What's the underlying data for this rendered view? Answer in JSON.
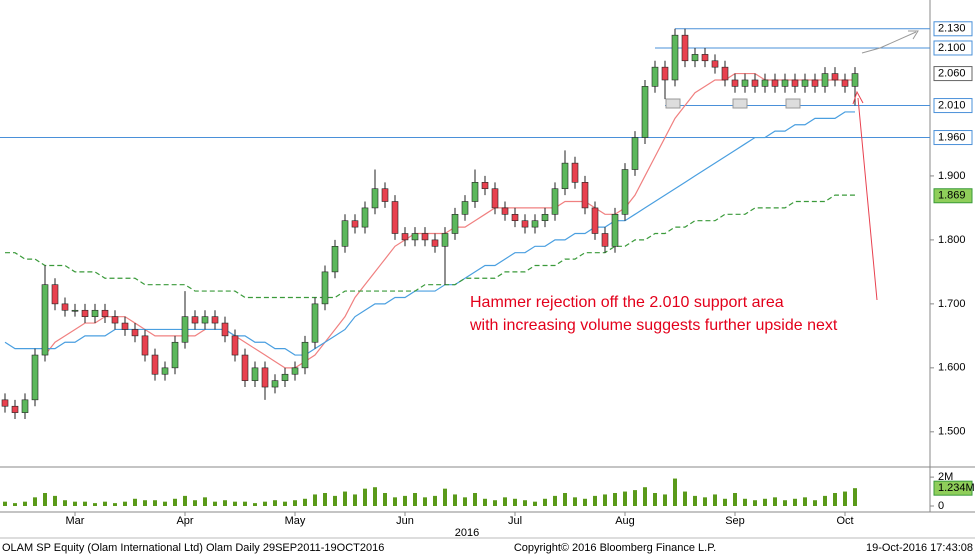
{
  "chart_data": {
    "type": "candlestick",
    "categories": [
      null,
      null,
      null,
      null,
      null,
      null,
      null,
      "Mar",
      null,
      null,
      null,
      null,
      null,
      null,
      null,
      null,
      null,
      null,
      "Apr",
      null,
      null,
      null,
      null,
      null,
      null,
      null,
      null,
      null,
      null,
      "May",
      null,
      null,
      null,
      null,
      null,
      null,
      null,
      null,
      null,
      null,
      "Jun",
      null,
      null,
      null,
      null,
      null,
      null,
      null,
      null,
      null,
      null,
      "Jul",
      null,
      null,
      null,
      null,
      null,
      null,
      null,
      null,
      null,
      null,
      "Aug",
      null,
      null,
      null,
      null,
      null,
      null,
      null,
      null,
      null,
      null,
      "Sep",
      null,
      null,
      null,
      null,
      null,
      null,
      null,
      null,
      null,
      null,
      "Oct",
      null
    ],
    "year_label": "2016",
    "open": [
      1.55,
      1.54,
      1.53,
      1.55,
      1.62,
      1.73,
      1.7,
      1.69,
      1.69,
      1.68,
      1.69,
      1.68,
      1.67,
      1.66,
      1.65,
      1.62,
      1.59,
      1.6,
      1.64,
      1.68,
      1.67,
      1.68,
      1.67,
      1.65,
      1.62,
      1.58,
      1.6,
      1.57,
      1.58,
      1.59,
      1.6,
      1.64,
      1.7,
      1.75,
      1.79,
      1.83,
      1.82,
      1.85,
      1.88,
      1.86,
      1.81,
      1.8,
      1.81,
      1.8,
      1.79,
      1.81,
      1.84,
      1.86,
      1.89,
      1.88,
      1.85,
      1.84,
      1.83,
      1.82,
      1.83,
      1.84,
      1.88,
      1.92,
      1.89,
      1.85,
      1.81,
      1.79,
      1.84,
      1.91,
      1.96,
      2.04,
      2.07,
      2.05,
      2.12,
      2.08,
      2.09,
      2.08,
      2.07,
      2.05,
      2.04,
      2.05,
      2.04,
      2.05,
      2.04,
      2.05,
      2.04,
      2.05,
      2.04,
      2.06,
      2.05,
      2.04
    ],
    "high": [
      1.56,
      1.55,
      1.56,
      1.63,
      1.76,
      1.74,
      1.71,
      1.7,
      1.7,
      1.7,
      1.7,
      1.69,
      1.68,
      1.67,
      1.66,
      1.63,
      1.61,
      1.65,
      1.72,
      1.69,
      1.69,
      1.69,
      1.68,
      1.66,
      1.63,
      1.61,
      1.61,
      1.59,
      1.6,
      1.61,
      1.65,
      1.71,
      1.76,
      1.8,
      1.84,
      1.84,
      1.86,
      1.91,
      1.89,
      1.87,
      1.82,
      1.82,
      1.82,
      1.81,
      1.82,
      1.85,
      1.87,
      1.91,
      1.9,
      1.89,
      1.86,
      1.85,
      1.84,
      1.84,
      1.85,
      1.89,
      1.94,
      1.93,
      1.9,
      1.86,
      1.82,
      1.85,
      1.92,
      1.97,
      2.05,
      2.08,
      2.08,
      2.13,
      2.13,
      2.1,
      2.1,
      2.09,
      2.08,
      2.06,
      2.06,
      2.06,
      2.06,
      2.06,
      2.06,
      2.06,
      2.06,
      2.06,
      2.07,
      2.07,
      2.06,
      2.07
    ],
    "low": [
      1.53,
      1.52,
      1.52,
      1.54,
      1.61,
      1.69,
      1.68,
      1.68,
      1.67,
      1.67,
      1.67,
      1.66,
      1.65,
      1.64,
      1.61,
      1.58,
      1.58,
      1.59,
      1.63,
      1.66,
      1.66,
      1.66,
      1.64,
      1.61,
      1.57,
      1.57,
      1.55,
      1.56,
      1.57,
      1.58,
      1.59,
      1.63,
      1.69,
      1.74,
      1.78,
      1.81,
      1.81,
      1.84,
      1.85,
      1.8,
      1.79,
      1.79,
      1.79,
      1.78,
      1.73,
      1.8,
      1.83,
      1.85,
      1.87,
      1.84,
      1.83,
      1.82,
      1.81,
      1.81,
      1.82,
      1.83,
      1.87,
      1.88,
      1.84,
      1.8,
      1.78,
      1.78,
      1.83,
      1.9,
      1.95,
      2.03,
      2.02,
      2.04,
      2.07,
      2.07,
      2.07,
      2.06,
      2.04,
      2.03,
      2.03,
      2.03,
      2.03,
      2.03,
      2.03,
      2.03,
      2.03,
      2.03,
      2.03,
      2.04,
      2.03,
      2.01
    ],
    "close": [
      1.54,
      1.53,
      1.55,
      1.62,
      1.73,
      1.7,
      1.69,
      1.69,
      1.68,
      1.69,
      1.68,
      1.67,
      1.66,
      1.65,
      1.62,
      1.59,
      1.6,
      1.64,
      1.68,
      1.67,
      1.68,
      1.67,
      1.65,
      1.62,
      1.58,
      1.6,
      1.57,
      1.58,
      1.59,
      1.6,
      1.64,
      1.7,
      1.75,
      1.79,
      1.83,
      1.82,
      1.85,
      1.88,
      1.86,
      1.81,
      1.8,
      1.81,
      1.8,
      1.79,
      1.81,
      1.84,
      1.86,
      1.89,
      1.88,
      1.85,
      1.84,
      1.83,
      1.82,
      1.83,
      1.84,
      1.88,
      1.92,
      1.89,
      1.85,
      1.81,
      1.79,
      1.84,
      1.91,
      1.96,
      2.04,
      2.07,
      2.05,
      2.12,
      2.08,
      2.09,
      2.08,
      2.07,
      2.05,
      2.04,
      2.05,
      2.04,
      2.05,
      2.04,
      2.05,
      2.04,
      2.05,
      2.04,
      2.06,
      2.05,
      2.04,
      2.06
    ],
    "up_color": "#5cb85c",
    "down_color": "#e8414f",
    "moving_averages": [
      {
        "color": "#f08080",
        "dash": false,
        "values": [
          null,
          null,
          null,
          null,
          1.62,
          1.64,
          1.65,
          1.66,
          1.67,
          1.67,
          1.68,
          1.68,
          1.68,
          1.67,
          1.66,
          1.65,
          1.65,
          1.65,
          1.65,
          1.65,
          1.66,
          1.66,
          1.66,
          1.65,
          1.64,
          1.63,
          1.62,
          1.61,
          1.6,
          1.6,
          1.61,
          1.62,
          1.64,
          1.66,
          1.68,
          1.71,
          1.73,
          1.75,
          1.77,
          1.79,
          1.8,
          1.81,
          1.81,
          1.81,
          1.81,
          1.82,
          1.82,
          1.83,
          1.84,
          1.85,
          1.85,
          1.85,
          1.85,
          1.85,
          1.85,
          1.85,
          1.86,
          1.86,
          1.86,
          1.85,
          1.84,
          1.84,
          1.85,
          1.87,
          1.9,
          1.93,
          1.96,
          1.99,
          2.01,
          2.03,
          2.04,
          2.05,
          2.05,
          2.06,
          2.06,
          2.06,
          2.05,
          2.05,
          2.05,
          2.05,
          2.05,
          2.05,
          2.05,
          2.05,
          2.05,
          2.05
        ]
      },
      {
        "color": "#4a9fe0",
        "dash": false,
        "values": [
          1.64,
          1.63,
          1.63,
          1.63,
          1.63,
          1.63,
          1.64,
          1.64,
          1.65,
          1.65,
          1.65,
          1.66,
          1.66,
          1.66,
          1.66,
          1.66,
          1.66,
          1.66,
          1.66,
          1.66,
          1.66,
          1.66,
          1.66,
          1.65,
          1.65,
          1.64,
          1.64,
          1.63,
          1.63,
          1.62,
          1.62,
          1.63,
          1.64,
          1.65,
          1.66,
          1.68,
          1.69,
          1.7,
          1.7,
          1.71,
          1.71,
          1.72,
          1.72,
          1.72,
          1.73,
          1.73,
          1.74,
          1.75,
          1.76,
          1.76,
          1.77,
          1.78,
          1.78,
          1.79,
          1.79,
          1.8,
          1.8,
          1.81,
          1.81,
          1.82,
          1.82,
          1.83,
          1.83,
          1.84,
          1.85,
          1.86,
          1.87,
          1.88,
          1.89,
          1.9,
          1.91,
          1.92,
          1.93,
          1.94,
          1.95,
          1.96,
          1.96,
          1.97,
          1.97,
          1.98,
          1.98,
          1.99,
          1.99,
          1.99,
          2.0,
          2.0
        ]
      },
      {
        "color": "#3a9a3a",
        "dash": true,
        "values": [
          1.78,
          1.78,
          1.77,
          1.77,
          1.76,
          1.76,
          1.76,
          1.75,
          1.75,
          1.75,
          1.74,
          1.74,
          1.74,
          1.74,
          1.73,
          1.73,
          1.73,
          1.73,
          1.73,
          1.72,
          1.72,
          1.72,
          1.72,
          1.72,
          1.71,
          1.71,
          1.71,
          1.71,
          1.71,
          1.71,
          1.71,
          1.71,
          1.71,
          1.71,
          1.72,
          1.72,
          1.72,
          1.72,
          1.72,
          1.72,
          1.72,
          1.72,
          1.73,
          1.73,
          1.73,
          1.73,
          1.74,
          1.74,
          1.74,
          1.74,
          1.75,
          1.75,
          1.75,
          1.76,
          1.76,
          1.76,
          1.77,
          1.77,
          1.78,
          1.78,
          1.78,
          1.79,
          1.79,
          1.8,
          1.8,
          1.81,
          1.81,
          1.82,
          1.82,
          1.83,
          1.83,
          1.83,
          1.84,
          1.84,
          1.84,
          1.85,
          1.85,
          1.85,
          1.85,
          1.86,
          1.86,
          1.86,
          1.86,
          1.87,
          1.87,
          1.87
        ]
      }
    ],
    "ylim": [
      1.445,
      2.175
    ],
    "yticks": [
      {
        "value": 1.5,
        "label": "1.500"
      },
      {
        "value": 1.6,
        "label": "1.600"
      },
      {
        "value": 1.7,
        "label": "1.700"
      },
      {
        "value": 1.8,
        "label": "1.800"
      },
      {
        "value": 1.9,
        "label": "1.900"
      }
    ],
    "levels": [
      {
        "value": 2.13,
        "label": "2.130"
      },
      {
        "value": 2.1,
        "label": "2.100"
      },
      {
        "value": 2.01,
        "label": "2.010"
      },
      {
        "value": 1.96,
        "label": "1.960"
      }
    ],
    "last_price": {
      "value": 2.06,
      "label": "2.060"
    },
    "ma_tag": {
      "value": 1.869,
      "label": "1.869"
    },
    "annotation": [
      "Hammer rejection off the 2.010 support area",
      "with increasing volume suggests further upside next"
    ],
    "volume": {
      "color": "#5a9a1a",
      "values": [
        0.3,
        0.2,
        0.3,
        0.6,
        0.9,
        0.7,
        0.4,
        0.3,
        0.3,
        0.2,
        0.3,
        0.2,
        0.3,
        0.5,
        0.4,
        0.4,
        0.3,
        0.5,
        0.7,
        0.4,
        0.6,
        0.3,
        0.4,
        0.3,
        0.3,
        0.2,
        0.3,
        0.4,
        0.3,
        0.4,
        0.5,
        0.8,
        0.9,
        0.7,
        1.0,
        0.8,
        1.2,
        1.3,
        0.9,
        0.6,
        0.7,
        0.9,
        0.6,
        0.7,
        1.2,
        0.8,
        0.6,
        0.9,
        0.5,
        0.4,
        0.6,
        0.5,
        0.4,
        0.3,
        0.5,
        0.7,
        0.9,
        0.6,
        0.5,
        0.7,
        0.8,
        0.9,
        1.0,
        1.1,
        1.3,
        0.9,
        0.8,
        1.9,
        1.0,
        0.7,
        0.6,
        0.8,
        0.5,
        0.9,
        0.5,
        0.4,
        0.5,
        0.6,
        0.4,
        0.5,
        0.6,
        0.4,
        0.7,
        0.9,
        1.0,
        1.234
      ],
      "ylim": [
        0,
        2.7
      ],
      "yticks": [
        0,
        {
          "value": 2,
          "label": "2M"
        }
      ],
      "last": {
        "value": 1.234,
        "label": "1.234M"
      }
    },
    "footer": {
      "left": "OLAM SP Equity (Olam International Ltd) Olam  Daily 29SEP2011-19OCT2016",
      "center": "Copyright© 2016 Bloomberg Finance L.P.",
      "right": "19-Oct-2016 17:43:08"
    }
  }
}
